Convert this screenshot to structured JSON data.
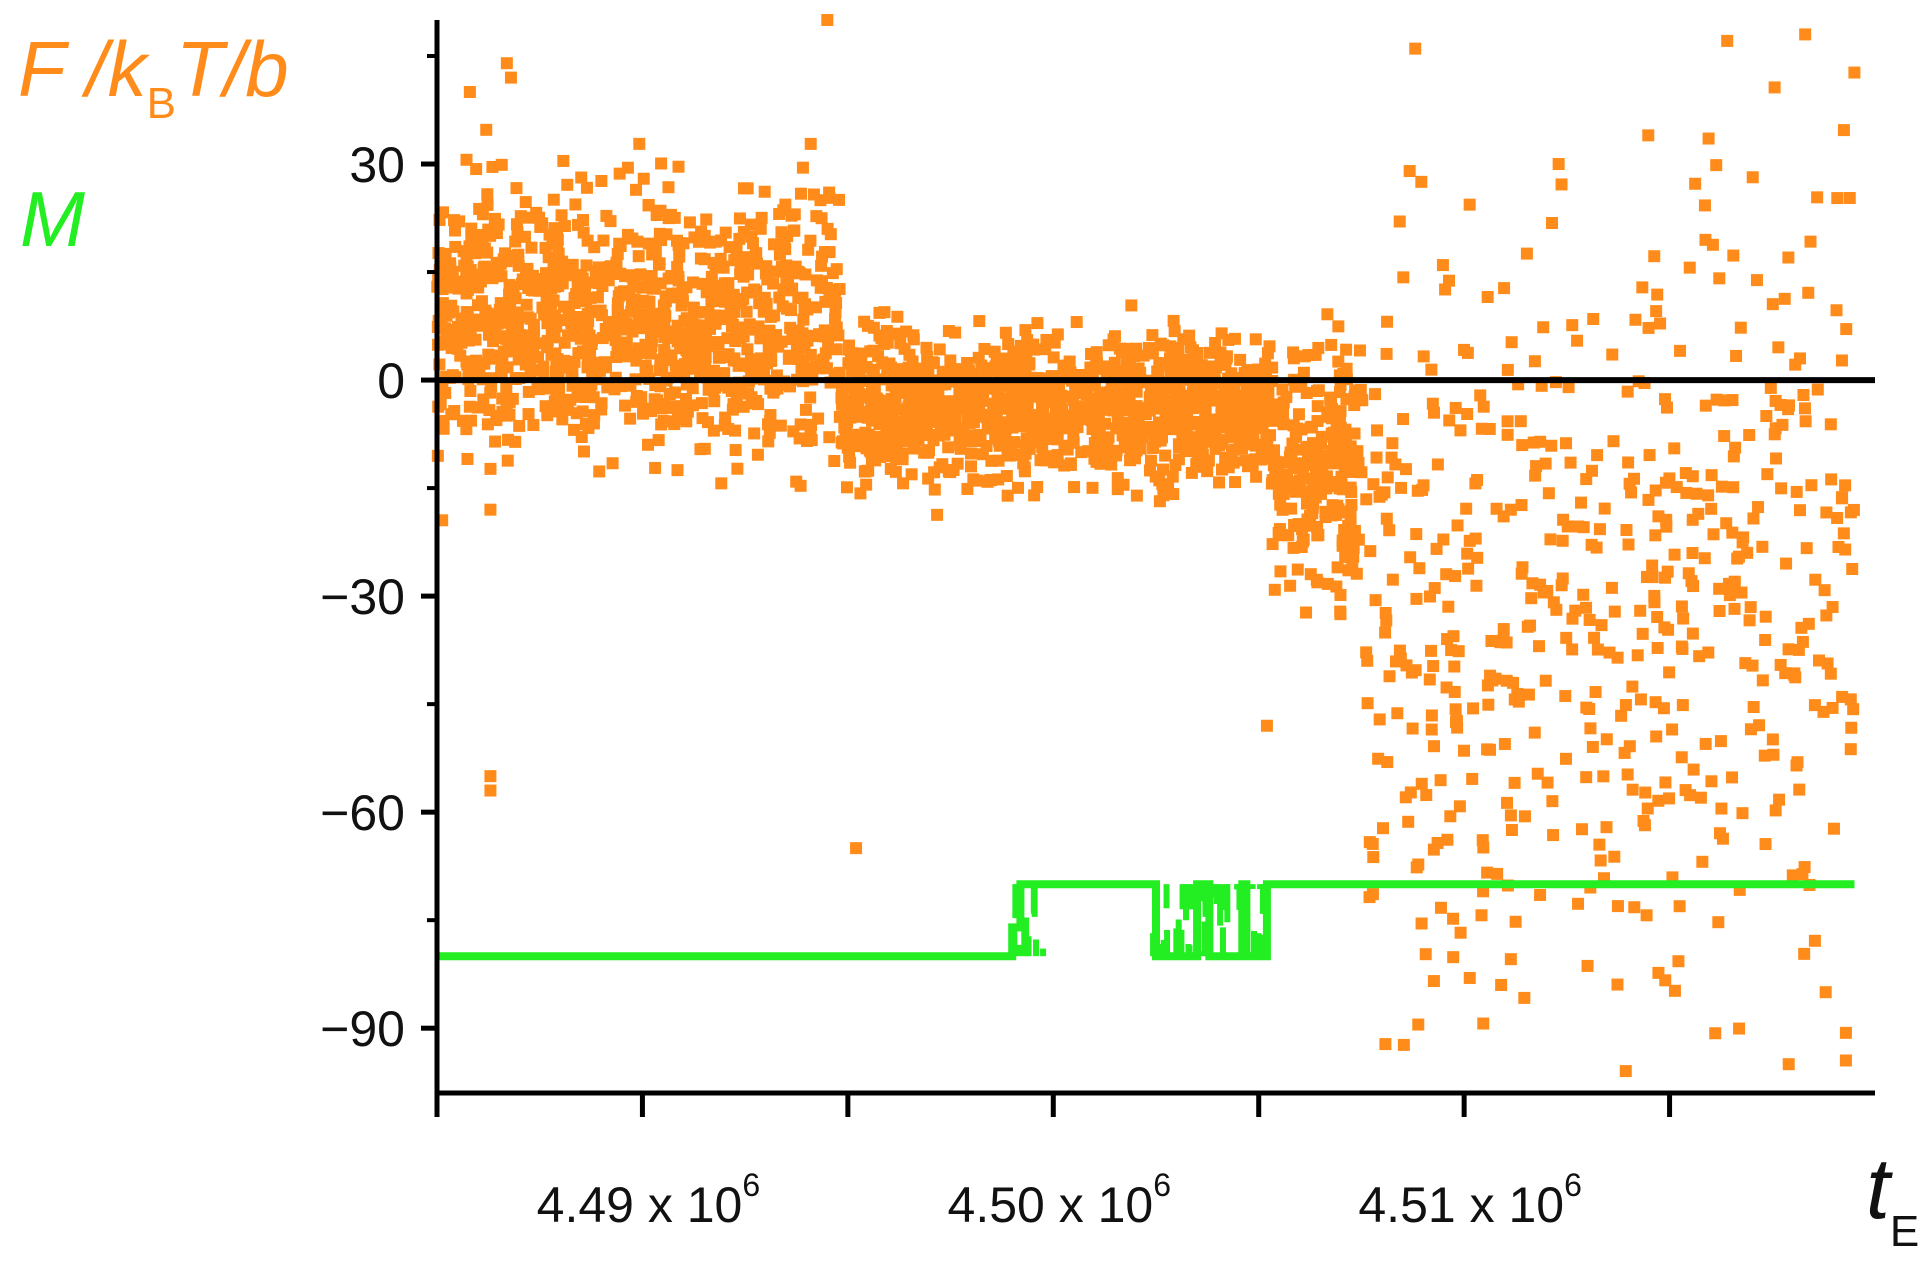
{
  "colors": {
    "force": "#ff8c1a",
    "m": "#22ee22",
    "axis": "#000000",
    "zero_line": "#000000"
  },
  "labels": {
    "y_force_main": "F /k",
    "y_force_sub": "B",
    "y_force_tail": "T/b",
    "y_m": "M",
    "x_main": "t",
    "x_sub": "E",
    "x_exp": "6",
    "x_tick_sep": " x 10"
  },
  "chart_data": {
    "type": "scatter",
    "title": "",
    "xlabel": "t_E",
    "ylabel": "F /k_B T/b",
    "xlim": [
      4.485,
      4.52
    ],
    "ylim": [
      -99,
      50
    ],
    "x_scale_note": "x 10^6",
    "x_ticks_major": [
      4.49,
      4.5,
      4.51
    ],
    "x_tick_labels": [
      "4.49",
      "4.50",
      "4.51"
    ],
    "x_ticks_minor": [
      4.485,
      4.495,
      4.505,
      4.515
    ],
    "y_ticks_major": [
      30,
      0,
      -30,
      -60,
      -90
    ],
    "y_tick_labels": [
      "30",
      "0",
      "−30",
      "−60",
      "−90"
    ],
    "y_ticks_minor": [
      45,
      15,
      -15,
      -45,
      -75
    ],
    "grid": false,
    "zero_line": true,
    "legend": "top-left, colored axis labels",
    "series": [
      {
        "name": "F /k_B T/b",
        "kind": "scatter",
        "regimes": [
          {
            "x_range": [
              4.485,
              4.4948
            ],
            "y_mean": 8,
            "y_spread": 9,
            "density": "high"
          },
          {
            "x_range": [
              4.4948,
              4.5053
            ],
            "y_mean": -4,
            "y_spread": 5,
            "density": "high"
          },
          {
            "x_range": [
              4.5053,
              4.5075
            ],
            "y_mean": -12,
            "y_spread": 8,
            "density": "high"
          },
          {
            "x_range": [
              4.5075,
              4.5195
            ],
            "y_mean": -30,
            "y_spread": 28,
            "density": "low"
          }
        ],
        "outliers": [
          {
            "x": 4.4863,
            "y": -18
          },
          {
            "x": 4.4863,
            "y": -55
          },
          {
            "x": 4.4863,
            "y": -57
          },
          {
            "x": 4.4858,
            "y": 40
          },
          {
            "x": 4.4867,
            "y": 44
          },
          {
            "x": 4.4868,
            "y": 42
          },
          {
            "x": 4.4945,
            "y": 50
          },
          {
            "x": 4.4952,
            "y": -65
          },
          {
            "x": 4.5052,
            "y": -48
          },
          {
            "x": 4.5109,
            "y": -84
          },
          {
            "x": 4.5123,
            "y": 30
          },
          {
            "x": 4.5192,
            "y": -44
          },
          {
            "x": 4.5188,
            "y": -85
          },
          {
            "x": 4.5179,
            "y": -95
          },
          {
            "x": 4.5183,
            "y": 48
          }
        ]
      },
      {
        "name": "M",
        "kind": "step",
        "baseline_y": -80,
        "elevated_y": -70,
        "step_points": [
          {
            "x": 4.485,
            "y": -80
          },
          {
            "x": 4.499,
            "y": -80
          },
          {
            "x": 4.499,
            "y": -76
          },
          {
            "x": 4.4992,
            "y": -76
          },
          {
            "x": 4.4992,
            "y": -70
          },
          {
            "x": 4.5025,
            "y": -70
          },
          {
            "x": 4.5025,
            "y": -80
          },
          {
            "x": 4.5035,
            "y": -80
          },
          {
            "x": 4.5035,
            "y": -70
          },
          {
            "x": 4.5038,
            "y": -70
          },
          {
            "x": 4.5038,
            "y": -80
          },
          {
            "x": 4.5046,
            "y": -80
          },
          {
            "x": 4.5046,
            "y": -70
          },
          {
            "x": 4.5047,
            "y": -70
          },
          {
            "x": 4.5047,
            "y": -80
          },
          {
            "x": 4.5052,
            "y": -80
          },
          {
            "x": 4.5052,
            "y": -70
          },
          {
            "x": 4.5195,
            "y": -70
          }
        ],
        "noise_intervals": [
          [
            4.499,
            4.4998
          ],
          [
            4.5023,
            4.5055
          ]
        ]
      }
    ]
  }
}
